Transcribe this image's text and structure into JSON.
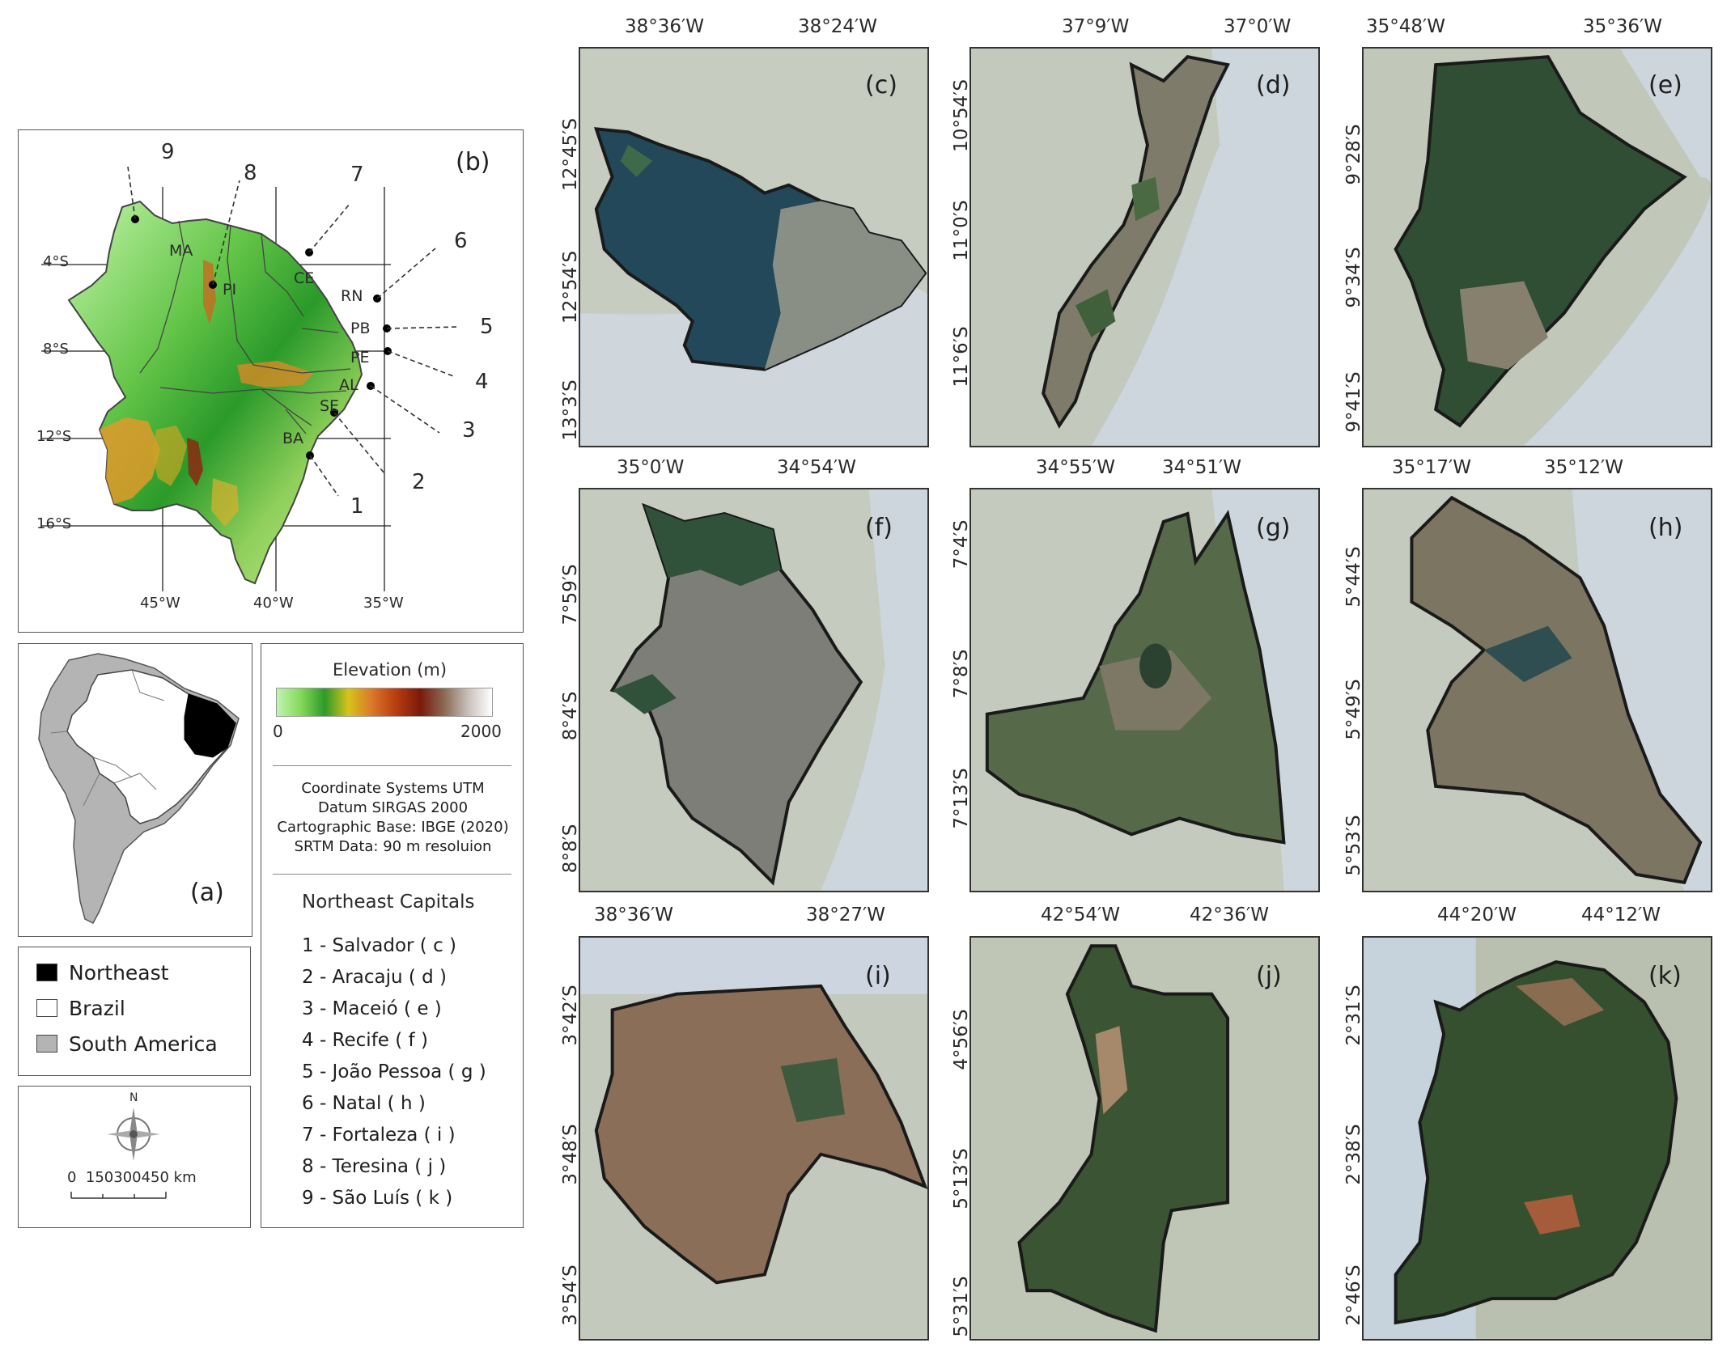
{
  "panel_letters": {
    "a": "(a)",
    "b": "(b)",
    "c": "(c)",
    "d": "(d)",
    "e": "(e)",
    "f": "(f)",
    "g": "(g)",
    "h": "(h)",
    "i": "(i)",
    "j": "(j)",
    "k": "(k)"
  },
  "region_map": {
    "state_labels": [
      "MA",
      "PI",
      "CE",
      "RN",
      "PB",
      "PE",
      "AL",
      "SE",
      "BA"
    ],
    "lat_labels": [
      "4°S",
      "8°S",
      "12°S",
      "16°S"
    ],
    "lon_labels": [
      "45°W",
      "40°W",
      "35°W"
    ],
    "pointer_numbers": [
      "1",
      "2",
      "3",
      "4",
      "5",
      "6",
      "7",
      "8",
      "9"
    ]
  },
  "legend": {
    "items": [
      {
        "label": "Northeast",
        "color": "#000000"
      },
      {
        "label": "Brazil",
        "color": "#ffffff"
      },
      {
        "label": "South America",
        "color": "#b4b4b4"
      }
    ]
  },
  "scale_bar": {
    "north_label": "N",
    "text": "0  150300450 km"
  },
  "elevation": {
    "title": "Elevation (m)",
    "min_label": "0",
    "max_label": "2000",
    "gradient_colors": [
      "#bff5b0",
      "#86d95a",
      "#2e9a2a",
      "#d7c21c",
      "#d9772a",
      "#b73c10",
      "#7a1a0a",
      "#8a6a55",
      "#c9c0bb",
      "#ffffff"
    ]
  },
  "metadata": {
    "lines": [
      "Coordinate Systems UTM",
      "Datum SIRGAS 2000",
      "Cartographic Base: IBGE (2020)",
      "SRTM Data: 90 m resoluion"
    ]
  },
  "capitals": {
    "title": "Northeast Capitals",
    "items": [
      "1 - Salvador ( c )",
      "2 - Aracaju ( d )",
      "3 - Maceió ( e )",
      "4 - Recife ( f )",
      "5 - João Pessoa ( g )",
      "6 - Natal ( h )",
      "7 - Fortaleza ( i )",
      "8 - Teresina ( j )",
      "9 - São Luís ( k )"
    ]
  },
  "city_panels": {
    "c": {
      "top": [
        "38°36′W",
        "38°24′W"
      ],
      "side": [
        "12°45′S",
        "12°54′S",
        "13°3′S"
      ]
    },
    "d": {
      "top": [
        "37°9′W",
        "37°0′W"
      ],
      "side": [
        "10°54′S",
        "11°0′S",
        "11°6′S"
      ]
    },
    "e": {
      "top": [
        "35°48′W",
        "35°36′W"
      ],
      "side": [
        "9°28′S",
        "9°34′S",
        "9°41′S"
      ]
    },
    "f": {
      "top": [
        "35°0′W",
        "34°54′W"
      ],
      "side": [
        "7°59′S",
        "8°4′S",
        "8°8′S"
      ]
    },
    "g": {
      "top": [
        "34°55′W",
        "34°51′W"
      ],
      "side": [
        "7°4′S",
        "7°8′S",
        "7°13′S"
      ]
    },
    "h": {
      "top": [
        "35°17′W",
        "35°12′W"
      ],
      "side": [
        "5°44′S",
        "5°49′S",
        "5°53′S"
      ]
    },
    "i": {
      "top": [
        "38°36′W",
        "38°27′W"
      ],
      "side": [
        "3°42′S",
        "3°48′S",
        "3°54′S"
      ]
    },
    "j": {
      "top": [
        "42°54′W",
        "42°36′W"
      ],
      "side": [
        "4°56′S",
        "5°13′S",
        "5°31′S"
      ]
    },
    "k": {
      "top": [
        "44°20′W",
        "44°12′W"
      ],
      "side": [
        "2°31′S",
        "2°38′S",
        "2°46′S"
      ]
    }
  }
}
